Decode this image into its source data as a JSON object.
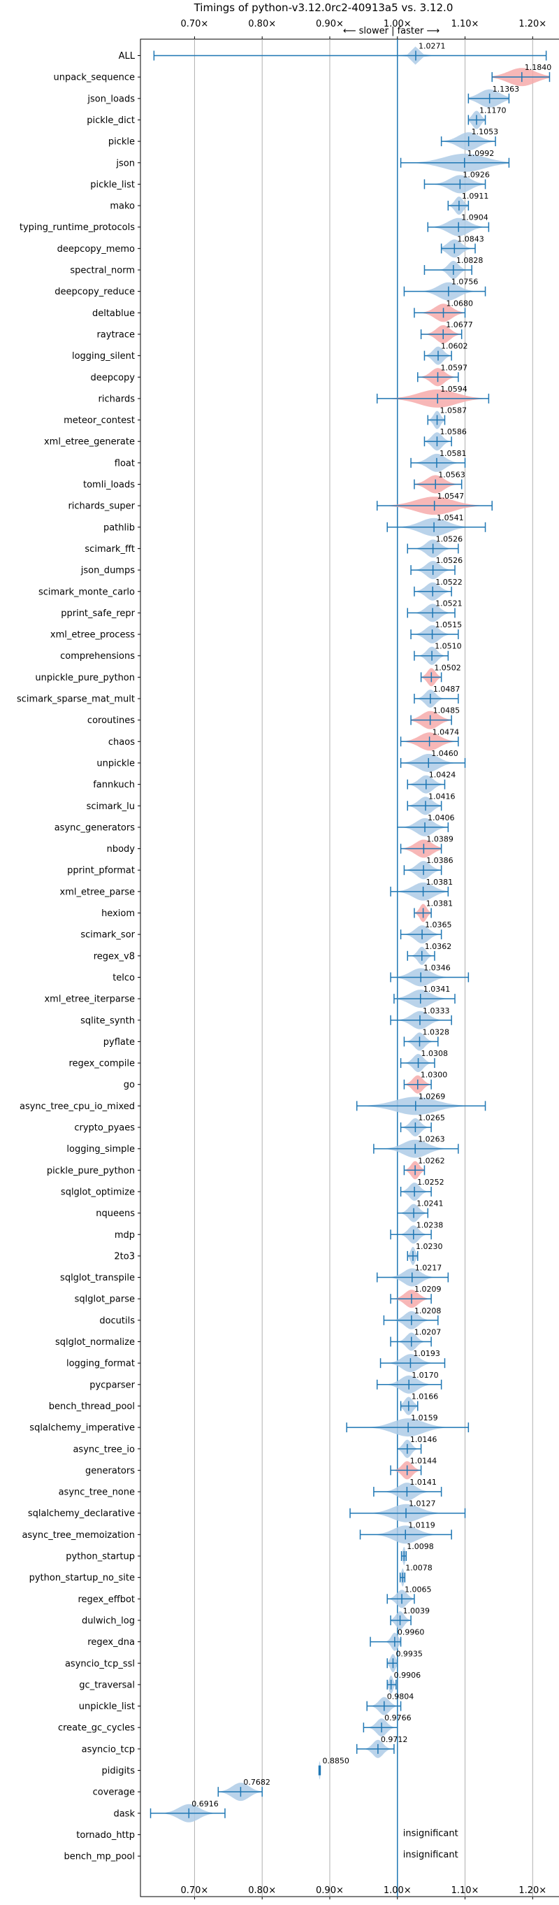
{
  "chart_data": {
    "type": "violin",
    "title": "Timings of python-v3.12.0rc2-40913a5 vs. 3.12.0",
    "direction_label": "⟵ slower | faster ⟶",
    "xlim": [
      0.62,
      1.24
    ],
    "x_ticks": [
      0.7,
      0.8,
      0.9,
      1.0,
      1.1,
      1.2
    ],
    "x_tick_labels": [
      "0.70×",
      "0.80×",
      "0.90×",
      "1.00×",
      "1.10×",
      "1.20×"
    ],
    "reference_line": 1.0,
    "grid": true,
    "colors": {
      "faster": "#aecbe6",
      "slower": "#f6aaaa",
      "line": "#1f77b4",
      "grid": "#b0b0b0"
    },
    "insignificant_label": "insignificant",
    "benchmarks": [
      {
        "name": "ALL",
        "mean": 1.0271,
        "label": "1.0271",
        "min": 0.64,
        "max": 1.22,
        "spread": 0.012,
        "color": "blue"
      },
      {
        "name": "unpack_sequence",
        "mean": 1.184,
        "label": "1.1840",
        "min": 1.14,
        "max": 1.225,
        "spread": 0.04,
        "color": "red"
      },
      {
        "name": "json_loads",
        "mean": 1.1363,
        "label": "1.1363",
        "min": 1.105,
        "max": 1.165,
        "spread": 0.03,
        "color": "blue"
      },
      {
        "name": "pickle_dict",
        "mean": 1.117,
        "label": "1.1170",
        "min": 1.105,
        "max": 1.13,
        "spread": 0.012,
        "color": "blue"
      },
      {
        "name": "pickle",
        "mean": 1.1053,
        "label": "1.1053",
        "min": 1.065,
        "max": 1.145,
        "spread": 0.03,
        "color": "blue"
      },
      {
        "name": "json",
        "mean": 1.0992,
        "label": "1.0992",
        "min": 1.005,
        "max": 1.165,
        "spread": 0.06,
        "color": "blue"
      },
      {
        "name": "pickle_list",
        "mean": 1.0926,
        "label": "1.0926",
        "min": 1.04,
        "max": 1.13,
        "spread": 0.03,
        "color": "blue"
      },
      {
        "name": "mako",
        "mean": 1.0911,
        "label": "1.0911",
        "min": 1.075,
        "max": 1.105,
        "spread": 0.012,
        "color": "blue"
      },
      {
        "name": "typing_runtime_protocols",
        "mean": 1.0904,
        "label": "1.0904",
        "min": 1.045,
        "max": 1.135,
        "spread": 0.03,
        "color": "blue"
      },
      {
        "name": "deepcopy_memo",
        "mean": 1.0843,
        "label": "1.0843",
        "min": 1.065,
        "max": 1.115,
        "spread": 0.02,
        "color": "blue"
      },
      {
        "name": "spectral_norm",
        "mean": 1.0828,
        "label": "1.0828",
        "min": 1.04,
        "max": 1.11,
        "spread": 0.015,
        "color": "blue"
      },
      {
        "name": "deepcopy_reduce",
        "mean": 1.0756,
        "label": "1.0756",
        "min": 1.01,
        "max": 1.13,
        "spread": 0.03,
        "color": "blue"
      },
      {
        "name": "deltablue",
        "mean": 1.068,
        "label": "1.0680",
        "min": 1.025,
        "max": 1.1,
        "spread": 0.025,
        "color": "red"
      },
      {
        "name": "raytrace",
        "mean": 1.0677,
        "label": "1.0677",
        "min": 1.035,
        "max": 1.095,
        "spread": 0.02,
        "color": "red"
      },
      {
        "name": "logging_silent",
        "mean": 1.0602,
        "label": "1.0602",
        "min": 1.04,
        "max": 1.08,
        "spread": 0.015,
        "color": "blue"
      },
      {
        "name": "deepcopy",
        "mean": 1.0597,
        "label": "1.0597",
        "min": 1.03,
        "max": 1.09,
        "spread": 0.02,
        "color": "red"
      },
      {
        "name": "richards",
        "mean": 1.0594,
        "label": "1.0594",
        "min": 0.97,
        "max": 1.135,
        "spread": 0.055,
        "color": "red"
      },
      {
        "name": "meteor_contest",
        "mean": 1.0587,
        "label": "1.0587",
        "min": 1.045,
        "max": 1.07,
        "spread": 0.01,
        "color": "blue"
      },
      {
        "name": "xml_etree_generate",
        "mean": 1.0586,
        "label": "1.0586",
        "min": 1.04,
        "max": 1.08,
        "spread": 0.015,
        "color": "blue"
      },
      {
        "name": "float",
        "mean": 1.0581,
        "label": "1.0581",
        "min": 1.02,
        "max": 1.1,
        "spread": 0.025,
        "color": "blue"
      },
      {
        "name": "tomli_loads",
        "mean": 1.0563,
        "label": "1.0563",
        "min": 1.025,
        "max": 1.095,
        "spread": 0.025,
        "color": "red"
      },
      {
        "name": "richards_super",
        "mean": 1.0547,
        "label": "1.0547",
        "min": 0.97,
        "max": 1.14,
        "spread": 0.055,
        "color": "red"
      },
      {
        "name": "pathlib",
        "mean": 1.0541,
        "label": "1.0541",
        "min": 0.985,
        "max": 1.13,
        "spread": 0.04,
        "color": "blue"
      },
      {
        "name": "scimark_fft",
        "mean": 1.0526,
        "label": "1.0526",
        "min": 1.015,
        "max": 1.09,
        "spread": 0.02,
        "color": "blue"
      },
      {
        "name": "json_dumps",
        "mean": 1.0526,
        "label": "1.0526",
        "min": 1.02,
        "max": 1.085,
        "spread": 0.02,
        "color": "blue"
      },
      {
        "name": "scimark_monte_carlo",
        "mean": 1.0522,
        "label": "1.0522",
        "min": 1.025,
        "max": 1.08,
        "spread": 0.02,
        "color": "blue"
      },
      {
        "name": "pprint_safe_repr",
        "mean": 1.0521,
        "label": "1.0521",
        "min": 1.015,
        "max": 1.085,
        "spread": 0.02,
        "color": "blue"
      },
      {
        "name": "xml_etree_process",
        "mean": 1.0515,
        "label": "1.0515",
        "min": 1.02,
        "max": 1.09,
        "spread": 0.02,
        "color": "blue"
      },
      {
        "name": "comprehensions",
        "mean": 1.051,
        "label": "1.0510",
        "min": 1.025,
        "max": 1.075,
        "spread": 0.015,
        "color": "blue"
      },
      {
        "name": "unpickle_pure_python",
        "mean": 1.0502,
        "label": "1.0502",
        "min": 1.035,
        "max": 1.065,
        "spread": 0.012,
        "color": "red"
      },
      {
        "name": "scimark_sparse_mat_mult",
        "mean": 1.0487,
        "label": "1.0487",
        "min": 1.025,
        "max": 1.09,
        "spread": 0.015,
        "color": "blue"
      },
      {
        "name": "coroutines",
        "mean": 1.0485,
        "label": "1.0485",
        "min": 1.02,
        "max": 1.08,
        "spread": 0.025,
        "color": "red"
      },
      {
        "name": "chaos",
        "mean": 1.0474,
        "label": "1.0474",
        "min": 1.005,
        "max": 1.09,
        "spread": 0.03,
        "color": "red"
      },
      {
        "name": "unpickle",
        "mean": 1.046,
        "label": "1.0460",
        "min": 1.005,
        "max": 1.1,
        "spread": 0.03,
        "color": "blue"
      },
      {
        "name": "fannkuch",
        "mean": 1.0424,
        "label": "1.0424",
        "min": 1.015,
        "max": 1.07,
        "spread": 0.02,
        "color": "blue"
      },
      {
        "name": "scimark_lu",
        "mean": 1.0416,
        "label": "1.0416",
        "min": 1.015,
        "max": 1.065,
        "spread": 0.02,
        "color": "blue"
      },
      {
        "name": "async_generators",
        "mean": 1.0406,
        "label": "1.0406",
        "min": 1.0,
        "max": 1.075,
        "spread": 0.025,
        "color": "blue"
      },
      {
        "name": "nbody",
        "mean": 1.0389,
        "label": "1.0389",
        "min": 1.005,
        "max": 1.065,
        "spread": 0.025,
        "color": "red"
      },
      {
        "name": "pprint_pformat",
        "mean": 1.0386,
        "label": "1.0386",
        "min": 1.01,
        "max": 1.065,
        "spread": 0.02,
        "color": "blue"
      },
      {
        "name": "xml_etree_parse",
        "mean": 1.0381,
        "label": "1.0381",
        "min": 0.99,
        "max": 1.075,
        "spread": 0.03,
        "color": "blue"
      },
      {
        "name": "hexiom",
        "mean": 1.0381,
        "label": "1.0381",
        "min": 1.025,
        "max": 1.05,
        "spread": 0.01,
        "color": "red"
      },
      {
        "name": "scimark_sor",
        "mean": 1.0365,
        "label": "1.0365",
        "min": 1.005,
        "max": 1.065,
        "spread": 0.02,
        "color": "blue"
      },
      {
        "name": "regex_v8",
        "mean": 1.0362,
        "label": "1.0362",
        "min": 1.015,
        "max": 1.055,
        "spread": 0.012,
        "color": "blue"
      },
      {
        "name": "telco",
        "mean": 1.0346,
        "label": "1.0346",
        "min": 0.99,
        "max": 1.105,
        "spread": 0.03,
        "color": "blue"
      },
      {
        "name": "xml_etree_iterparse",
        "mean": 1.0341,
        "label": "1.0341",
        "min": 0.995,
        "max": 1.085,
        "spread": 0.03,
        "color": "blue"
      },
      {
        "name": "sqlite_synth",
        "mean": 1.0333,
        "label": "1.0333",
        "min": 0.99,
        "max": 1.08,
        "spread": 0.025,
        "color": "blue"
      },
      {
        "name": "pyflate",
        "mean": 1.0328,
        "label": "1.0328",
        "min": 1.01,
        "max": 1.06,
        "spread": 0.015,
        "color": "blue"
      },
      {
        "name": "regex_compile",
        "mean": 1.0308,
        "label": "1.0308",
        "min": 1.005,
        "max": 1.055,
        "spread": 0.015,
        "color": "blue"
      },
      {
        "name": "go",
        "mean": 1.03,
        "label": "1.0300",
        "min": 1.01,
        "max": 1.05,
        "spread": 0.015,
        "color": "red"
      },
      {
        "name": "async_tree_cpu_io_mixed",
        "mean": 1.0269,
        "label": "1.0269",
        "min": 0.94,
        "max": 1.13,
        "spread": 0.06,
        "color": "blue"
      },
      {
        "name": "crypto_pyaes",
        "mean": 1.0265,
        "label": "1.0265",
        "min": 1.005,
        "max": 1.05,
        "spread": 0.015,
        "color": "blue"
      },
      {
        "name": "logging_simple",
        "mean": 1.0263,
        "label": "1.0263",
        "min": 0.965,
        "max": 1.09,
        "spread": 0.035,
        "color": "blue"
      },
      {
        "name": "pickle_pure_python",
        "mean": 1.0262,
        "label": "1.0262",
        "min": 1.01,
        "max": 1.04,
        "spread": 0.012,
        "color": "red"
      },
      {
        "name": "sqlglot_optimize",
        "mean": 1.0252,
        "label": "1.0252",
        "min": 1.005,
        "max": 1.05,
        "spread": 0.015,
        "color": "blue"
      },
      {
        "name": "nqueens",
        "mean": 1.0241,
        "label": "1.0241",
        "min": 1.0,
        "max": 1.045,
        "spread": 0.015,
        "color": "blue"
      },
      {
        "name": "mdp",
        "mean": 1.0238,
        "label": "1.0238",
        "min": 0.99,
        "max": 1.05,
        "spread": 0.015,
        "color": "blue"
      },
      {
        "name": "2to3",
        "mean": 1.023,
        "label": "1.0230",
        "min": 1.015,
        "max": 1.03,
        "spread": 0.007,
        "color": "blue"
      },
      {
        "name": "sqlglot_transpile",
        "mean": 1.0217,
        "label": "1.0217",
        "min": 0.97,
        "max": 1.075,
        "spread": 0.025,
        "color": "blue"
      },
      {
        "name": "sqlglot_parse",
        "mean": 1.0209,
        "label": "1.0209",
        "min": 0.99,
        "max": 1.05,
        "spread": 0.02,
        "color": "red"
      },
      {
        "name": "docutils",
        "mean": 1.0208,
        "label": "1.0208",
        "min": 0.98,
        "max": 1.06,
        "spread": 0.02,
        "color": "blue"
      },
      {
        "name": "sqlglot_normalize",
        "mean": 1.0207,
        "label": "1.0207",
        "min": 0.99,
        "max": 1.05,
        "spread": 0.015,
        "color": "blue"
      },
      {
        "name": "logging_format",
        "mean": 1.0193,
        "label": "1.0193",
        "min": 0.975,
        "max": 1.07,
        "spread": 0.025,
        "color": "blue"
      },
      {
        "name": "pycparser",
        "mean": 1.017,
        "label": "1.0170",
        "min": 0.97,
        "max": 1.065,
        "spread": 0.025,
        "color": "blue"
      },
      {
        "name": "bench_thread_pool",
        "mean": 1.0166,
        "label": "1.0166",
        "min": 1.005,
        "max": 1.03,
        "spread": 0.012,
        "color": "blue"
      },
      {
        "name": "sqlalchemy_imperative",
        "mean": 1.0159,
        "label": "1.0159",
        "min": 0.925,
        "max": 1.105,
        "spread": 0.045,
        "color": "blue"
      },
      {
        "name": "async_tree_io",
        "mean": 1.0146,
        "label": "1.0146",
        "min": 1.0,
        "max": 1.035,
        "spread": 0.012,
        "color": "blue"
      },
      {
        "name": "generators",
        "mean": 1.0144,
        "label": "1.0144",
        "min": 0.99,
        "max": 1.035,
        "spread": 0.015,
        "color": "red"
      },
      {
        "name": "async_tree_none",
        "mean": 1.0141,
        "label": "1.0141",
        "min": 0.965,
        "max": 1.065,
        "spread": 0.025,
        "color": "blue"
      },
      {
        "name": "sqlalchemy_declarative",
        "mean": 1.0127,
        "label": "1.0127",
        "min": 0.93,
        "max": 1.1,
        "spread": 0.04,
        "color": "blue"
      },
      {
        "name": "async_tree_memoization",
        "mean": 1.0119,
        "label": "1.0119",
        "min": 0.945,
        "max": 1.08,
        "spread": 0.035,
        "color": "blue"
      },
      {
        "name": "python_startup",
        "mean": 1.0098,
        "label": "1.0098",
        "min": 1.006,
        "max": 1.013,
        "spread": 0.004,
        "color": "blue"
      },
      {
        "name": "python_startup_no_site",
        "mean": 1.0078,
        "label": "1.0078",
        "min": 1.004,
        "max": 1.011,
        "spread": 0.004,
        "color": "blue"
      },
      {
        "name": "regex_effbot",
        "mean": 1.0065,
        "label": "1.0065",
        "min": 0.985,
        "max": 1.025,
        "spread": 0.015,
        "color": "blue"
      },
      {
        "name": "dulwich_log",
        "mean": 1.0039,
        "label": "1.0039",
        "min": 0.99,
        "max": 1.02,
        "spread": 0.012,
        "color": "blue"
      },
      {
        "name": "regex_dna",
        "mean": 0.996,
        "label": "0.9960",
        "min": 0.96,
        "max": 1.005,
        "spread": 0.01,
        "color": "blue"
      },
      {
        "name": "asyncio_tcp_ssl",
        "mean": 0.9935,
        "label": "0.9935",
        "min": 0.985,
        "max": 1.0,
        "spread": 0.008,
        "color": "blue"
      },
      {
        "name": "gc_traversal",
        "mean": 0.9906,
        "label": "0.9906",
        "min": 0.985,
        "max": 0.998,
        "spread": 0.006,
        "color": "blue"
      },
      {
        "name": "unpickle_list",
        "mean": 0.9804,
        "label": "0.9804",
        "min": 0.955,
        "max": 1.005,
        "spread": 0.015,
        "color": "blue"
      },
      {
        "name": "create_gc_cycles",
        "mean": 0.9766,
        "label": "0.9766",
        "min": 0.95,
        "max": 1.0,
        "spread": 0.015,
        "color": "blue"
      },
      {
        "name": "asyncio_tcp",
        "mean": 0.9712,
        "label": "0.9712",
        "min": 0.94,
        "max": 0.995,
        "spread": 0.015,
        "color": "blue"
      },
      {
        "name": "pidigits",
        "mean": 0.885,
        "label": "0.8850",
        "min": 0.884,
        "max": 0.886,
        "spread": 0.002,
        "color": "blue"
      },
      {
        "name": "coverage",
        "mean": 0.7682,
        "label": "0.7682",
        "min": 0.735,
        "max": 0.8,
        "spread": 0.025,
        "color": "blue"
      },
      {
        "name": "dask",
        "mean": 0.6916,
        "label": "0.6916",
        "min": 0.635,
        "max": 0.745,
        "spread": 0.03,
        "color": "blue"
      },
      {
        "name": "tornado_http",
        "mean": null,
        "label": "",
        "insignificant": true
      },
      {
        "name": "bench_mp_pool",
        "mean": null,
        "label": "",
        "insignificant": true
      }
    ]
  }
}
